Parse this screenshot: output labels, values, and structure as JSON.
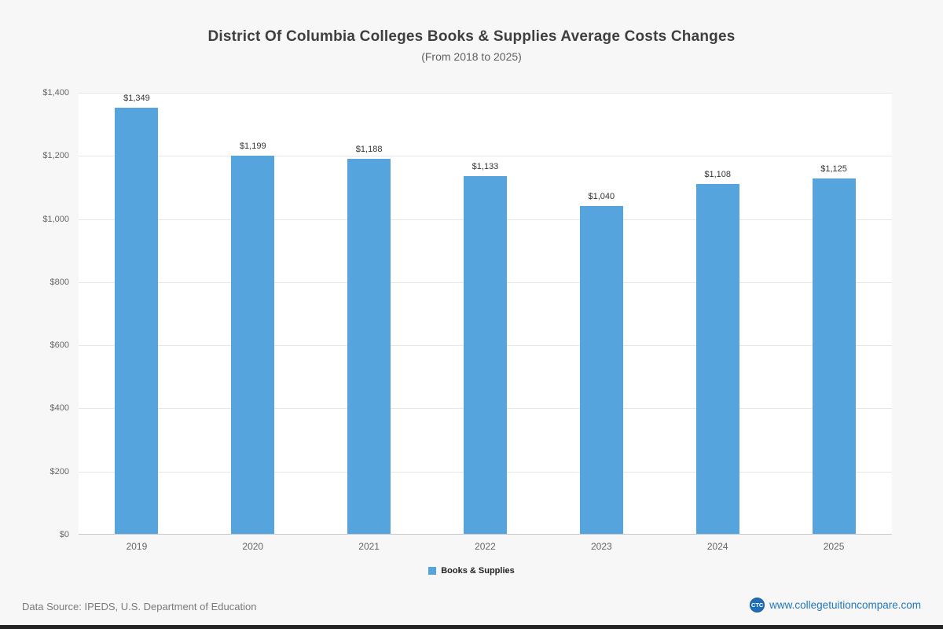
{
  "page": {
    "title": "District Of Columbia Colleges  Books & Supplies Average Costs Changes",
    "subtitle": "(From 2018 to 2025)",
    "footer_source": "Data Source: IPEDS, U.S. Department of Education",
    "footer_site": "www.collegetuitioncompare.com",
    "logo_text": "CTC"
  },
  "chart_data": {
    "type": "bar",
    "title": "District Of Columbia Colleges  Books & Supplies Average Costs Changes",
    "subtitle": "(From 2018 to 2025)",
    "categories": [
      "2019",
      "2020",
      "2021",
      "2022",
      "2023",
      "2024",
      "2025"
    ],
    "series": [
      {
        "name": "Books & Supplies",
        "values": [
          1349,
          1199,
          1188,
          1133,
          1040,
          1108,
          1125
        ]
      }
    ],
    "value_labels": [
      "$1,349",
      "$1,199",
      "$1,188",
      "$1,133",
      "$1,040",
      "$1,108",
      "$1,125"
    ],
    "xlabel": "",
    "ylabel": "",
    "ylim": [
      0,
      1400
    ],
    "ytick_interval": 200,
    "ytick_labels": [
      "$0",
      "$200",
      "$400",
      "$600",
      "$800",
      "$1,000",
      "$1,200",
      "$1,400"
    ],
    "grid": true,
    "legend_position": "bottom",
    "bar_color": "#56a4dd",
    "plot_background": "#ffffff",
    "page_background": "#f7f7f7"
  }
}
